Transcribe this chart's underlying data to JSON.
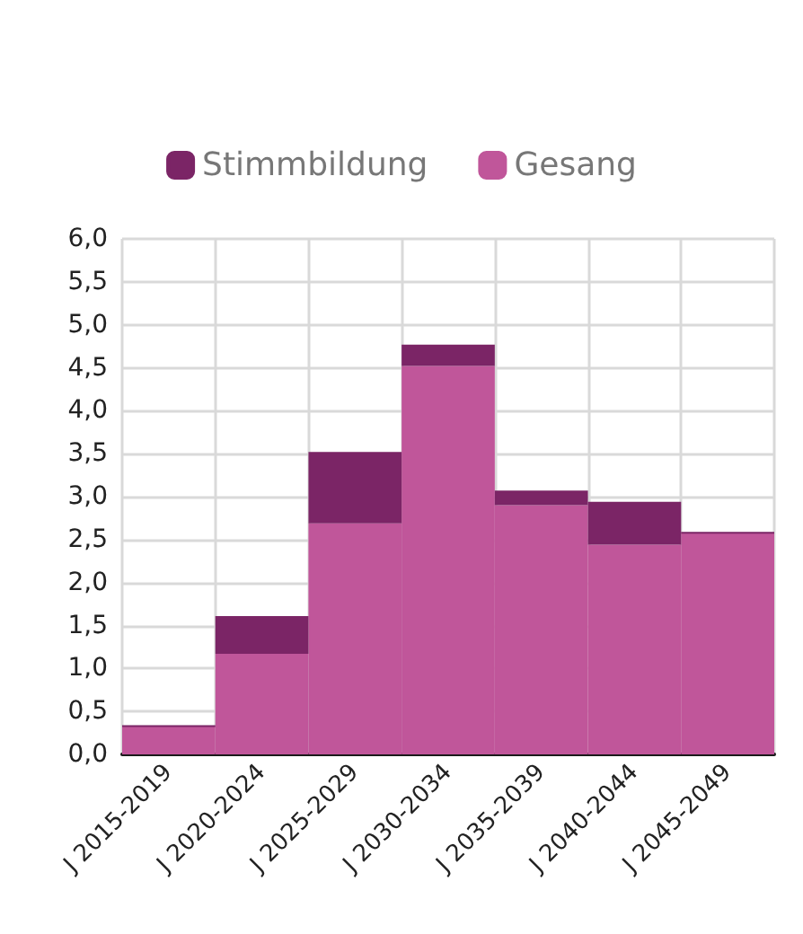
{
  "chart_data": {
    "type": "bar",
    "stacked": true,
    "categories": [
      "J 2015-2019",
      "J 2020-2024",
      "J 2025-2029",
      "J 2030-2034",
      "J 2035-2039",
      "J 2040-2044",
      "J 2045-2049"
    ],
    "series": [
      {
        "name": "Gesang",
        "color": "#c0569a",
        "values": [
          0.33,
          1.17,
          2.69,
          4.52,
          2.9,
          2.44,
          2.58
        ]
      },
      {
        "name": "Stimmbildung",
        "color": "#7b2566",
        "values": [
          0,
          0.44,
          0.83,
          0.25,
          0.17,
          0.5,
          0
        ]
      }
    ],
    "ylim": [
      0,
      6
    ],
    "yticks": [
      {
        "value": 0,
        "label": "0,0"
      },
      {
        "value": 0.5,
        "label": "0,5"
      },
      {
        "value": 1,
        "label": "1,0"
      },
      {
        "value": 1.5,
        "label": "1,5"
      },
      {
        "value": 2,
        "label": "2,0"
      },
      {
        "value": 2.5,
        "label": "2,5"
      },
      {
        "value": 3,
        "label": "3,0"
      },
      {
        "value": 3.5,
        "label": "3,5"
      },
      {
        "value": 4,
        "label": "4,0"
      },
      {
        "value": 4.5,
        "label": "4,5"
      },
      {
        "value": 5,
        "label": "5,0"
      },
      {
        "value": 5.5,
        "label": "5,5"
      },
      {
        "value": 6,
        "label": "6,0"
      }
    ],
    "grid": true,
    "legend": "top"
  }
}
